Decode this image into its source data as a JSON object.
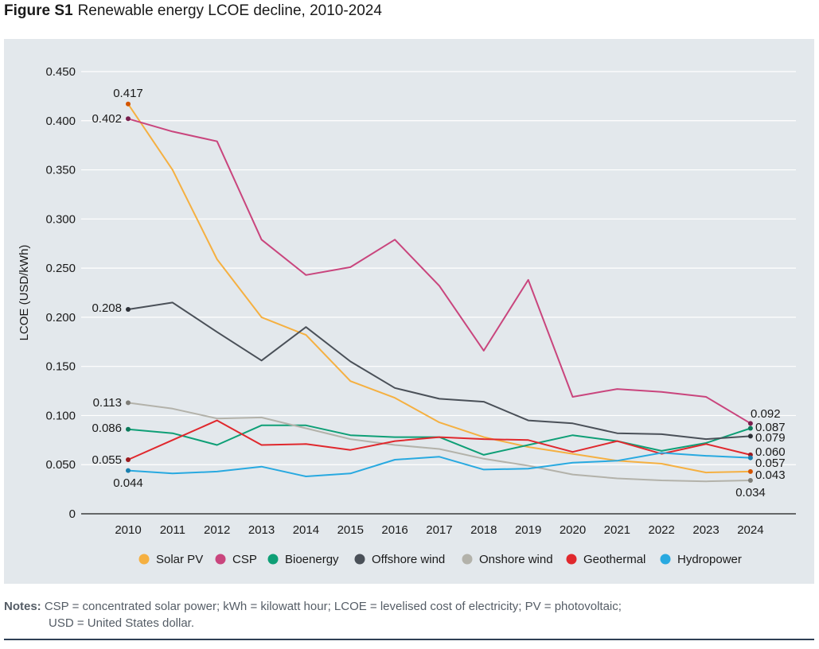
{
  "figure": {
    "label": "Figure S1",
    "title": "Renewable energy LCOE decline, 2010-2024"
  },
  "notes": {
    "label": "Notes:",
    "line1": "CSP = concentrated solar power; kWh = kilowatt hour; LCOE = levelised cost of electricity; PV = photovoltaic;",
    "line2": "USD = United States dollar."
  },
  "chart_data": {
    "type": "line",
    "title": "Renewable energy LCOE decline, 2010-2024",
    "xlabel": "",
    "ylabel": "LCOE (USD/kWh)",
    "ylim": [
      0,
      0.45
    ],
    "yticks": [
      "0",
      "0.050",
      "0.100",
      "0.150",
      "0.200",
      "0.250",
      "0.300",
      "0.350",
      "0.400",
      "0.450"
    ],
    "grid": true,
    "legend_position": "bottom",
    "x": [
      2010,
      2011,
      2012,
      2013,
      2014,
      2015,
      2016,
      2017,
      2018,
      2019,
      2020,
      2021,
      2022,
      2023,
      2024
    ],
    "series": [
      {
        "name": "Solar PV",
        "color": "#f5b041",
        "values": [
          0.417,
          0.35,
          0.259,
          0.2,
          0.182,
          0.135,
          0.118,
          0.093,
          0.078,
          0.068,
          0.061,
          0.054,
          0.051,
          0.042,
          0.043
        ],
        "start_label": "0.417",
        "end_label": "0.043"
      },
      {
        "name": "CSP",
        "color": "#c9457d",
        "values": [
          0.402,
          0.389,
          0.379,
          0.279,
          0.243,
          0.251,
          0.279,
          0.232,
          0.166,
          0.238,
          0.119,
          0.127,
          0.124,
          0.119,
          0.092
        ],
        "start_label": "0.402",
        "end_label": "0.092"
      },
      {
        "name": "Bioenergy",
        "color": "#0e9f76",
        "values": [
          0.086,
          0.082,
          0.07,
          0.09,
          0.09,
          0.08,
          0.078,
          0.078,
          0.06,
          0.07,
          0.08,
          0.074,
          0.064,
          0.072,
          0.087
        ],
        "start_label": "0.086",
        "end_label": "0.087"
      },
      {
        "name": "Offshore wind",
        "color": "#4a5058",
        "values": [
          0.208,
          0.215,
          0.185,
          0.156,
          0.19,
          0.155,
          0.128,
          0.117,
          0.114,
          0.095,
          0.092,
          0.082,
          0.081,
          0.076,
          0.079
        ],
        "start_label": "0.208",
        "end_label": "0.079"
      },
      {
        "name": "Onshore wind",
        "color": "#b3b2aa",
        "values": [
          0.113,
          0.107,
          0.097,
          0.098,
          0.087,
          0.076,
          0.07,
          0.066,
          0.056,
          0.049,
          0.04,
          0.036,
          0.034,
          0.033,
          0.034
        ],
        "start_label": "0.113",
        "end_label": "0.034"
      },
      {
        "name": "Geothermal",
        "color": "#e0282d",
        "values": [
          0.055,
          0.075,
          0.095,
          0.07,
          0.071,
          0.065,
          0.074,
          0.078,
          0.076,
          0.075,
          0.063,
          0.074,
          0.061,
          0.071,
          0.06
        ],
        "start_label": "0.055",
        "end_label": "0.060"
      },
      {
        "name": "Hydropower",
        "color": "#28a9e0",
        "values": [
          0.044,
          0.041,
          0.043,
          0.048,
          0.038,
          0.041,
          0.055,
          0.058,
          0.045,
          0.046,
          0.052,
          0.054,
          0.062,
          0.059,
          0.057
        ],
        "start_label": "0.044",
        "end_label": "0.057"
      }
    ]
  }
}
